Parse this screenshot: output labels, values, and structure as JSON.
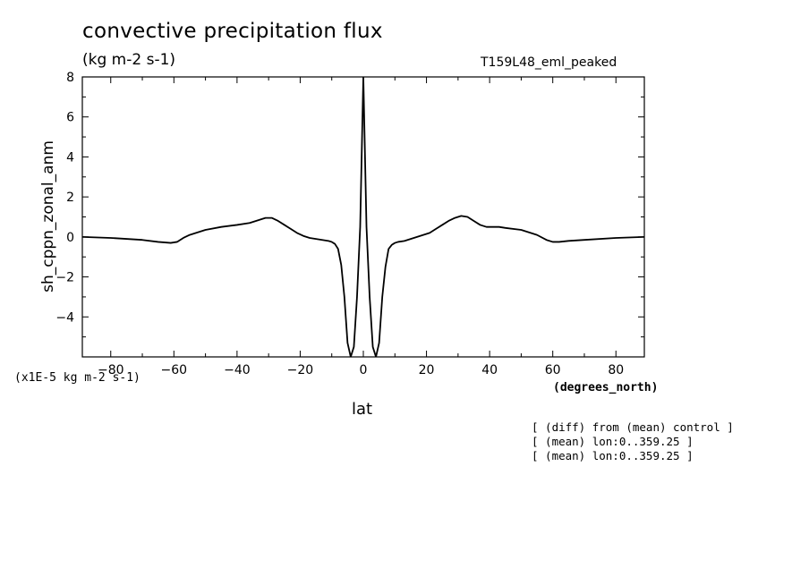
{
  "chart_data": {
    "type": "line",
    "title": "convective precipitation flux",
    "units_label": "(kg m-2 s-1)",
    "run_label": "T159L48_eml_peaked",
    "xlabel": "lat",
    "x_units": "(degrees_north)",
    "ylabel": "sh_cppn_zonal_anm",
    "scale_note": "(x1E-5 kg m-2 s-1)",
    "notes": [
      "[ (diff) from (mean) control ]",
      "[ (mean) lon:0..359.25 ]",
      "[ (mean) lon:0..359.25 ]"
    ],
    "xlim": [
      -89,
      89
    ],
    "ylim": [
      -6,
      8
    ],
    "xticks": [
      -80,
      -60,
      -40,
      -20,
      0,
      20,
      40,
      60,
      80
    ],
    "yticks": [
      -4,
      -2,
      0,
      2,
      4,
      6,
      8
    ],
    "grid": false,
    "series": [
      {
        "x": [
          -89,
          -80,
          -70,
          -65,
          -61,
          -59,
          -57,
          -55,
          -50,
          -45,
          -40,
          -36,
          -33,
          -31,
          -29,
          -27,
          -25,
          -23,
          -21,
          -19,
          -17,
          -15,
          -13,
          -11,
          -10,
          -9,
          -8,
          -7,
          -6,
          -5,
          -4,
          -3,
          -2,
          -1,
          0,
          1,
          2,
          3,
          4,
          5,
          6,
          7,
          8,
          9,
          10,
          11,
          13,
          15,
          17,
          19,
          21,
          23,
          25,
          27,
          29,
          31,
          33,
          35,
          37,
          39,
          41,
          43,
          45,
          50,
          55,
          58,
          60,
          62,
          65,
          70,
          80,
          89
        ],
        "y": [
          0.0,
          -0.05,
          -0.15,
          -0.25,
          -0.3,
          -0.25,
          -0.05,
          0.1,
          0.35,
          0.5,
          0.6,
          0.7,
          0.85,
          0.95,
          0.95,
          0.8,
          0.6,
          0.4,
          0.2,
          0.05,
          -0.05,
          -0.1,
          -0.15,
          -0.2,
          -0.25,
          -0.35,
          -0.6,
          -1.4,
          -3.0,
          -5.3,
          -6.0,
          -5.5,
          -3.0,
          0.5,
          8.0,
          0.5,
          -3.0,
          -5.5,
          -6.0,
          -5.3,
          -3.0,
          -1.5,
          -0.6,
          -0.4,
          -0.3,
          -0.25,
          -0.2,
          -0.1,
          0.0,
          0.1,
          0.2,
          0.4,
          0.6,
          0.8,
          0.95,
          1.05,
          1.0,
          0.8,
          0.6,
          0.5,
          0.5,
          0.5,
          0.45,
          0.35,
          0.1,
          -0.15,
          -0.25,
          -0.25,
          -0.2,
          -0.15,
          -0.05,
          0.0
        ]
      }
    ]
  }
}
